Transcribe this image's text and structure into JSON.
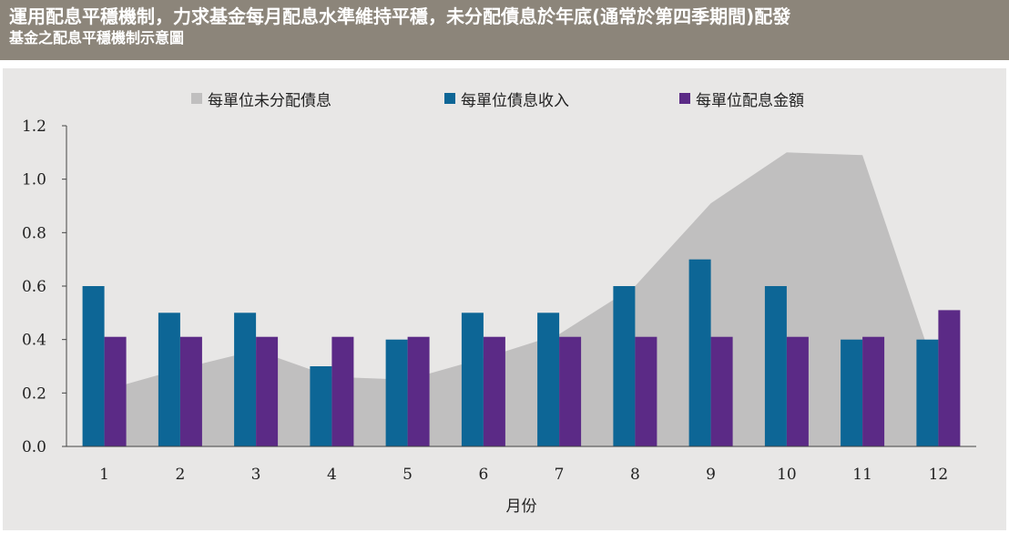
{
  "header": {
    "title": "運用配息平穩機制，力求基金每月配息水準維持平穩，未分配債息於年底(通常於第四季期間)配發",
    "subtitle": "基金之配息平穩機制示意圖"
  },
  "chart_data": {
    "type": "bar",
    "title": "",
    "xlabel": "月份",
    "ylabel": "",
    "ylim": [
      0,
      1.2
    ],
    "yticks": [
      "0.0",
      "0.2",
      "0.4",
      "0.6",
      "0.8",
      "1.0",
      "1.2"
    ],
    "categories": [
      "1",
      "2",
      "3",
      "4",
      "5",
      "6",
      "7",
      "8",
      "9",
      "10",
      "11",
      "12"
    ],
    "legend_position": "top",
    "series": [
      {
        "name": "每單位未分配債息",
        "type": "area",
        "color": "#c0bfbf",
        "values": [
          0.21,
          0.29,
          0.36,
          0.26,
          0.25,
          0.33,
          0.42,
          0.6,
          0.91,
          1.1,
          1.09,
          0.25
        ]
      },
      {
        "name": "每單位債息收入",
        "type": "bar",
        "color": "#0d6696",
        "values": [
          0.6,
          0.5,
          0.5,
          0.3,
          0.4,
          0.5,
          0.5,
          0.6,
          0.7,
          0.6,
          0.4,
          0.4
        ]
      },
      {
        "name": "每單位配息金額",
        "type": "bar",
        "color": "#5b2a86",
        "values": [
          0.41,
          0.41,
          0.41,
          0.41,
          0.41,
          0.41,
          0.41,
          0.41,
          0.41,
          0.41,
          0.41,
          0.51
        ]
      }
    ]
  }
}
